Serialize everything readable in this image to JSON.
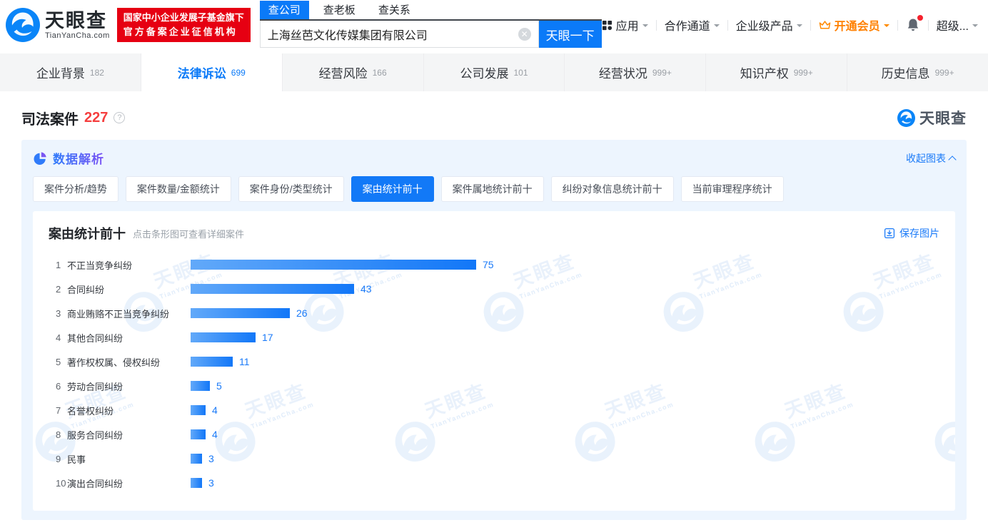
{
  "brand": {
    "name": "天眼查",
    "domain": "TianYanCha.com",
    "badge_line1": "国家中小企业发展子基金旗下",
    "badge_line2": "官方备案企业征信机构"
  },
  "header": {
    "search_tabs": [
      {
        "label": "查公司",
        "active": true
      },
      {
        "label": "查老板",
        "active": false
      },
      {
        "label": "查关系",
        "active": false
      }
    ],
    "search_value": "上海丝芭文化传媒集团有限公司",
    "search_button": "天眼一下",
    "nav": {
      "apps": "应用",
      "partner": "合作通道",
      "enterprise": "企业级产品",
      "vip": "开通会员",
      "super": "超级..."
    }
  },
  "tabs": {
    "items": [
      {
        "label": "企业背景",
        "count": "182",
        "active": false
      },
      {
        "label": "法律诉讼",
        "count": "699",
        "active": true
      },
      {
        "label": "经营风险",
        "count": "166",
        "active": false
      },
      {
        "label": "公司发展",
        "count": "101",
        "active": false
      },
      {
        "label": "经营状况",
        "count": "999+",
        "active": false
      },
      {
        "label": "知识产权",
        "count": "999+",
        "active": false
      },
      {
        "label": "历史信息",
        "count": "999+",
        "active": false
      }
    ]
  },
  "section": {
    "title": "司法案件",
    "count": "227"
  },
  "panel": {
    "title": "数据解析",
    "collapse_label": "收起图表",
    "subtabs": [
      {
        "label": "案件分析/趋势",
        "active": false
      },
      {
        "label": "案件数量/金额统计",
        "active": false
      },
      {
        "label": "案件身份/类型统计",
        "active": false
      },
      {
        "label": "案由统计前十",
        "active": true
      },
      {
        "label": "案件属地统计前十",
        "active": false
      },
      {
        "label": "纠纷对象信息统计前十",
        "active": false
      },
      {
        "label": "当前审理程序统计",
        "active": false
      }
    ]
  },
  "card": {
    "title": "案由统计前十",
    "hint": "点击条形图可查看详细案件",
    "save_label": "保存图片"
  },
  "chart_data": {
    "type": "bar",
    "orientation": "horizontal",
    "title": "案由统计前十",
    "categories": [
      "不正当竞争纠纷",
      "合同纠纷",
      "商业贿赂不正当竞争纠纷",
      "其他合同纠纷",
      "著作权权属、侵权纠纷",
      "劳动合同纠纷",
      "名誉权纠纷",
      "服务合同纠纷",
      "民事",
      "演出合同纠纷"
    ],
    "values": [
      75,
      43,
      26,
      17,
      11,
      5,
      4,
      4,
      3,
      3
    ],
    "ranks": [
      "1",
      "2",
      "3",
      "4",
      "5",
      "6",
      "7",
      "8",
      "9",
      "10"
    ],
    "xlim": [
      0,
      75
    ],
    "grid": false,
    "value_labels_shown": true,
    "bar_gradient": [
      "#62a9f9",
      "#1277f8"
    ],
    "value_label_color": "#1a7af8"
  },
  "colors": {
    "accent": "#0b7af8",
    "badge_red": "#e60012",
    "count_red": "#f53f3f",
    "vip_orange": "#ff8000",
    "panel_bg": "#edf5fe"
  }
}
